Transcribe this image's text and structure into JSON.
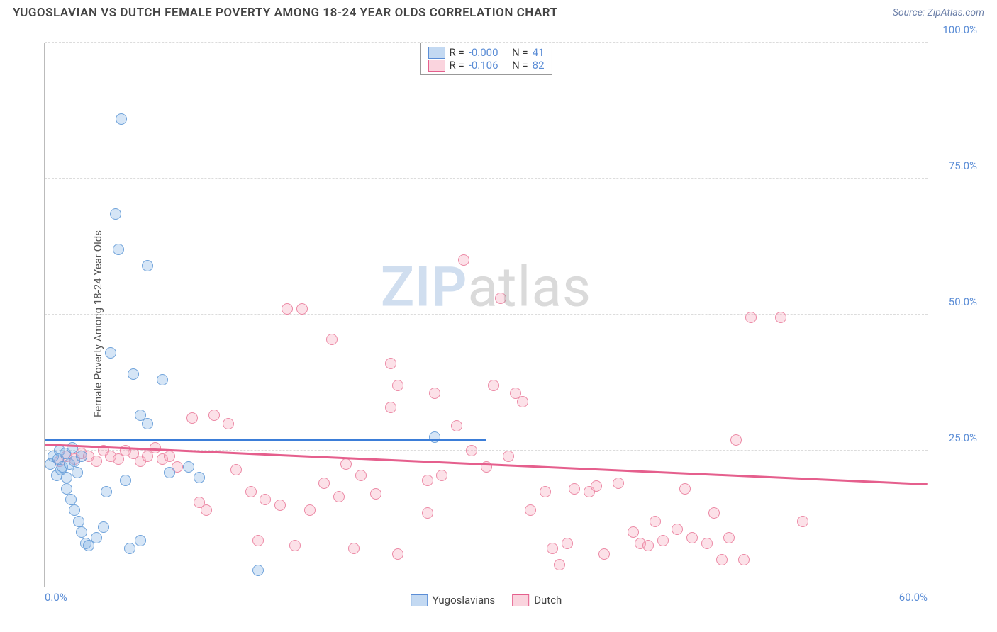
{
  "title": "YUGOSLAVIAN VS DUTCH FEMALE POVERTY AMONG 18-24 YEAR OLDS CORRELATION CHART",
  "source": "Source: ZipAtlas.com",
  "ylabel": "Female Poverty Among 18-24 Year Olds",
  "watermark": {
    "bold": "ZIP",
    "light": "atlas"
  },
  "chart": {
    "type": "scatter",
    "xlim": [
      0,
      60
    ],
    "ylim": [
      0,
      100
    ],
    "xticks": [
      {
        "v": 0,
        "label": "0.0%"
      },
      {
        "v": 60,
        "label": "60.0%"
      }
    ],
    "yticks": [
      {
        "v": 25,
        "label": "25.0%"
      },
      {
        "v": 50,
        "label": "50.0%"
      },
      {
        "v": 75,
        "label": "75.0%"
      },
      {
        "v": 100,
        "label": "100.0%"
      }
    ],
    "marker_radius": 7,
    "background_color": "#ffffff",
    "grid_color": "#dcdcdc",
    "series": {
      "a": {
        "label": "Yugoslavians",
        "R": "-0.000",
        "N": "41",
        "color_fill": "rgba(135,180,230,0.35)",
        "color_stroke": "#649bd7",
        "trend": {
          "y_at_x0": 27.2,
          "y_at_xmax": 27.2,
          "xmax": 30
        },
        "points": [
          [
            0.4,
            22.5
          ],
          [
            0.6,
            24.0
          ],
          [
            0.8,
            20.5
          ],
          [
            0.9,
            23.5
          ],
          [
            1.0,
            25.0
          ],
          [
            1.1,
            21.5
          ],
          [
            1.2,
            22.0
          ],
          [
            1.4,
            24.5
          ],
          [
            1.5,
            20.0
          ],
          [
            1.7,
            22.5
          ],
          [
            1.9,
            25.5
          ],
          [
            2.0,
            23.0
          ],
          [
            2.2,
            21.0
          ],
          [
            2.5,
            24.0
          ],
          [
            1.5,
            18.0
          ],
          [
            1.8,
            16.0
          ],
          [
            2.0,
            14.0
          ],
          [
            2.3,
            12.0
          ],
          [
            2.5,
            10.0
          ],
          [
            2.8,
            8.0
          ],
          [
            3.0,
            7.5
          ],
          [
            3.5,
            9.0
          ],
          [
            4.0,
            11.0
          ],
          [
            5.2,
            86.0
          ],
          [
            4.8,
            68.5
          ],
          [
            5.0,
            62.0
          ],
          [
            7.0,
            59.0
          ],
          [
            4.5,
            43.0
          ],
          [
            6.0,
            39.0
          ],
          [
            6.5,
            31.5
          ],
          [
            7.0,
            30.0
          ],
          [
            8.0,
            38.0
          ],
          [
            9.8,
            22.0
          ],
          [
            10.5,
            20.0
          ],
          [
            5.5,
            19.5
          ],
          [
            4.2,
            17.5
          ],
          [
            6.5,
            8.5
          ],
          [
            5.8,
            7.0
          ],
          [
            14.5,
            3.0
          ],
          [
            8.5,
            21.0
          ],
          [
            26.5,
            27.5
          ]
        ]
      },
      "b": {
        "label": "Dutch",
        "R": "-0.106",
        "N": "82",
        "color_fill": "rgba(245,170,190,0.35)",
        "color_stroke": "#eb82a0",
        "trend": {
          "y_at_x0": 26.3,
          "y_at_xmax": 19.0,
          "xmax": 60
        },
        "points": [
          [
            1.0,
            23.0
          ],
          [
            1.5,
            24.0
          ],
          [
            2.0,
            23.5
          ],
          [
            2.5,
            24.5
          ],
          [
            3.0,
            24.0
          ],
          [
            3.5,
            23.0
          ],
          [
            4.0,
            25.0
          ],
          [
            4.5,
            24.0
          ],
          [
            5.0,
            23.5
          ],
          [
            5.5,
            25.0
          ],
          [
            6.0,
            24.5
          ],
          [
            6.5,
            23.0
          ],
          [
            7.0,
            24.0
          ],
          [
            7.5,
            25.5
          ],
          [
            8.0,
            23.5
          ],
          [
            8.5,
            24.0
          ],
          [
            9.0,
            22.0
          ],
          [
            10.0,
            31.0
          ],
          [
            11.5,
            31.5
          ],
          [
            12.5,
            30.0
          ],
          [
            26.5,
            35.5
          ],
          [
            16.5,
            51.0
          ],
          [
            17.5,
            51.0
          ],
          [
            19.5,
            45.5
          ],
          [
            22.5,
            17.0
          ],
          [
            23.5,
            41.0
          ],
          [
            24.0,
            37.0
          ],
          [
            23.5,
            33.0
          ],
          [
            14.0,
            17.5
          ],
          [
            15.0,
            16.0
          ],
          [
            16.0,
            15.0
          ],
          [
            17.0,
            7.5
          ],
          [
            18.0,
            14.0
          ],
          [
            19.0,
            19.0
          ],
          [
            20.0,
            16.5
          ],
          [
            20.5,
            22.5
          ],
          [
            21.5,
            20.5
          ],
          [
            24.0,
            6.0
          ],
          [
            26.0,
            19.5
          ],
          [
            27.0,
            20.5
          ],
          [
            28.0,
            29.5
          ],
          [
            28.5,
            60.0
          ],
          [
            29.0,
            25.0
          ],
          [
            30.0,
            22.0
          ],
          [
            30.5,
            37.0
          ],
          [
            31.0,
            53.0
          ],
          [
            31.5,
            24.0
          ],
          [
            32.0,
            35.5
          ],
          [
            32.5,
            34.0
          ],
          [
            33.0,
            14.0
          ],
          [
            34.0,
            17.5
          ],
          [
            35.0,
            4.0
          ],
          [
            35.5,
            8.0
          ],
          [
            36.0,
            18.0
          ],
          [
            37.0,
            17.5
          ],
          [
            39.0,
            19.0
          ],
          [
            40.0,
            10.0
          ],
          [
            40.5,
            8.0
          ],
          [
            41.0,
            7.5
          ],
          [
            41.5,
            12.0
          ],
          [
            42.0,
            8.5
          ],
          [
            43.0,
            10.5
          ],
          [
            44.0,
            9.0
          ],
          [
            45.0,
            8.0
          ],
          [
            45.5,
            13.5
          ],
          [
            46.0,
            5.0
          ],
          [
            46.5,
            9.0
          ],
          [
            47.5,
            5.0
          ],
          [
            47.0,
            27.0
          ],
          [
            48.0,
            49.5
          ],
          [
            50.0,
            49.5
          ],
          [
            51.5,
            12.0
          ],
          [
            26.0,
            13.5
          ],
          [
            13.0,
            21.5
          ],
          [
            11.0,
            14.0
          ],
          [
            14.5,
            8.5
          ],
          [
            10.5,
            15.5
          ],
          [
            21.0,
            7.0
          ],
          [
            38.0,
            6.0
          ],
          [
            34.5,
            7.0
          ],
          [
            37.5,
            18.5
          ],
          [
            43.5,
            18.0
          ]
        ]
      }
    }
  },
  "legend_top": {
    "R_label": "R =",
    "N_label": "N ="
  }
}
